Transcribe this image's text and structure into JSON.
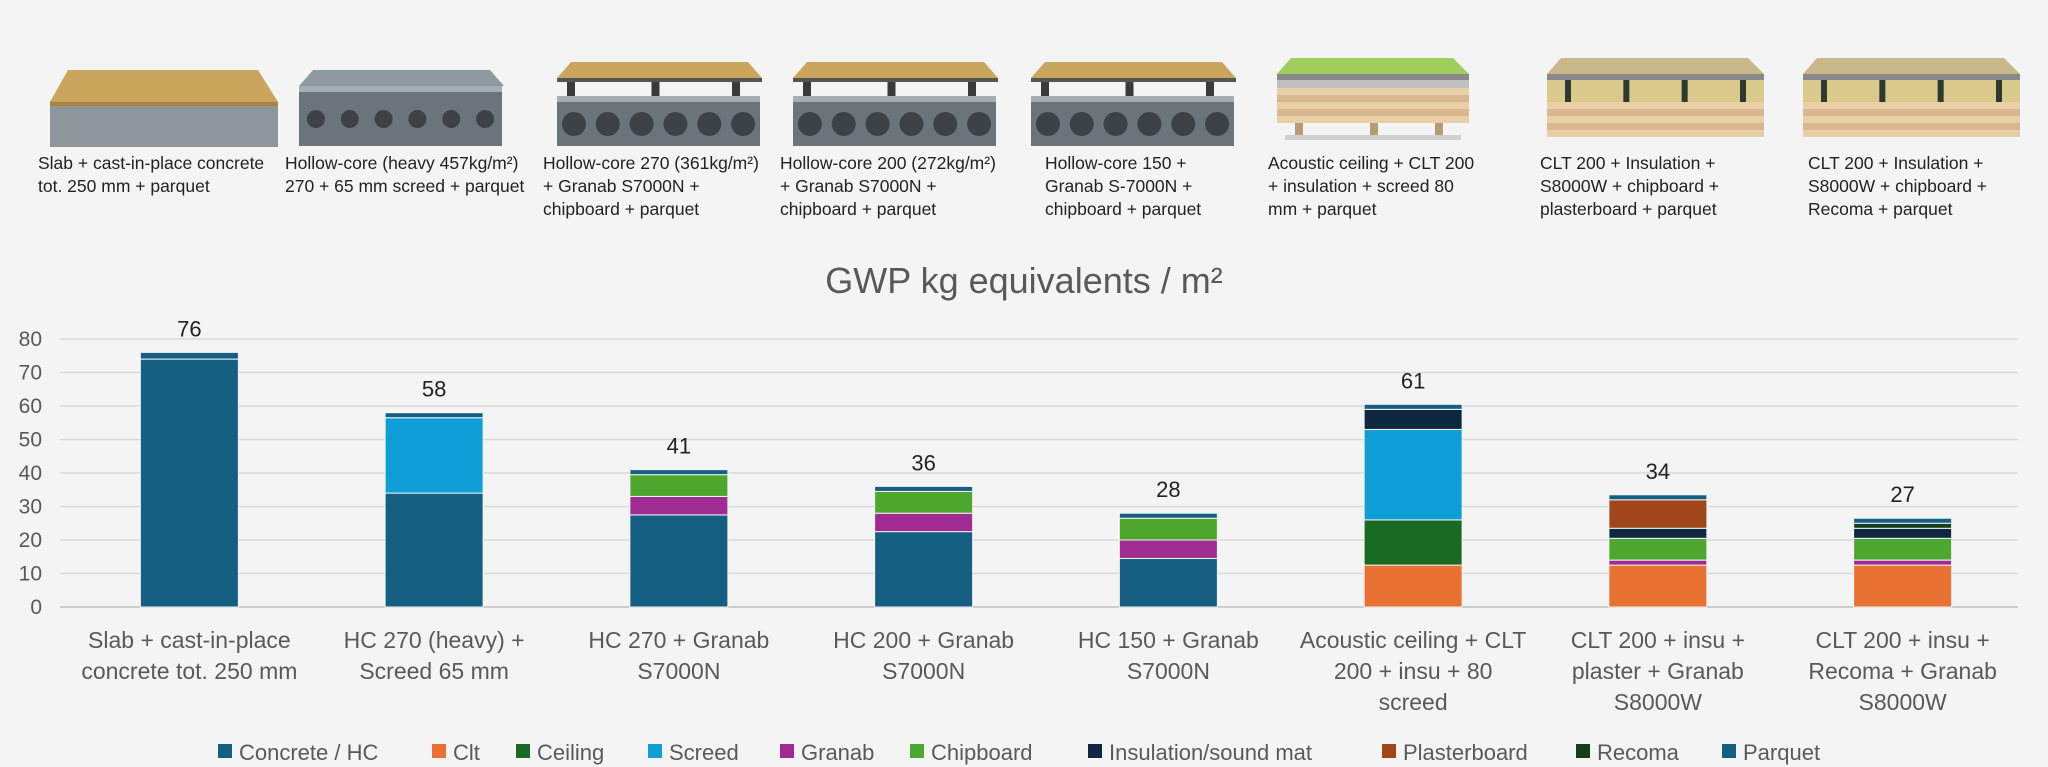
{
  "products": [
    {
      "caption": "Slab + cast-in-place concrete\ntot. 250 mm + parquet",
      "kind": "slab"
    },
    {
      "caption": "Hollow-core (heavy 457kg/m²)\n270 + 65 mm screed + parquet",
      "kind": "hc"
    },
    {
      "caption": "Hollow-core 270 (361kg/m²)\n+ Granab S7000N +\nchipboard + parquet",
      "kind": "hcg"
    },
    {
      "caption": "Hollow-core 200 (272kg/m²)\n+ Granab S7000N +\nchipboard + parquet",
      "kind": "hcg"
    },
    {
      "caption": "Hollow-core 150 +\nGranab S-7000N +\nchipboard +  parquet",
      "kind": "hcg"
    },
    {
      "caption": "Acoustic ceiling + CLT 200\n+ insulation + screed 80\nmm + parquet",
      "kind": "clt"
    },
    {
      "caption": "CLT 200 + Insulation +\nS8000W + chipboard +\nplasterboard + parquet",
      "kind": "clt2"
    },
    {
      "caption": "CLT 200 + Insulation +\nS8000W + chipboard +\nRecoma + parquet",
      "kind": "clt2"
    }
  ],
  "chart_data": {
    "type": "bar",
    "stacked": true,
    "title": "GWP kg equivalents / m²",
    "ylim": [
      0,
      80
    ],
    "yticks": [
      0,
      10,
      20,
      30,
      40,
      50,
      60,
      70,
      80
    ],
    "grid": true,
    "legend_position": "bottom",
    "categories": [
      "Slab + cast-in-place concrete tot. 250 mm",
      "HC 270 (heavy) + Screed 65 mm",
      "HC 270 + Granab S7000N",
      "HC 200 + Granab S7000N",
      "HC 150 + Granab S7000N",
      "Acoustic ceiling + CLT 200 + insu + 80 screed",
      "CLT 200 + insu + plaster + Granab S8000W",
      "CLT 200 + insu + Recoma + Granab S8000W"
    ],
    "totals": [
      76,
      58,
      41,
      36,
      28,
      61,
      34,
      27
    ],
    "series": [
      {
        "name": "Concrete / HC",
        "color": "#156082",
        "values": [
          74,
          34,
          27.5,
          22.5,
          14.5,
          0,
          0,
          0
        ]
      },
      {
        "name": "Clt",
        "color": "#e97132",
        "values": [
          0,
          0,
          0,
          0,
          0,
          12.5,
          12.5,
          12.5
        ]
      },
      {
        "name": "Ceiling",
        "color": "#196b24",
        "values": [
          0,
          0,
          0,
          0,
          0,
          13.5,
          0,
          0
        ]
      },
      {
        "name": "Screed",
        "color": "#0f9ed5",
        "values": [
          0,
          22.5,
          0,
          0,
          0,
          27,
          0,
          0
        ]
      },
      {
        "name": "Granab",
        "color": "#a02b93",
        "values": [
          0,
          0,
          5.5,
          5.5,
          5.5,
          0,
          1.5,
          1.5
        ]
      },
      {
        "name": "Chipboard",
        "color": "#4ea72e",
        "values": [
          0,
          0,
          6.5,
          6.5,
          6.5,
          0,
          6.5,
          6.5
        ]
      },
      {
        "name": "Insulation/sound mat",
        "color": "#0e2841",
        "values": [
          0,
          0,
          0,
          0,
          0,
          6,
          3,
          3
        ]
      },
      {
        "name": "Plasterboard",
        "color": "#a0461a",
        "values": [
          0,
          0,
          0,
          0,
          0,
          0,
          8.5,
          0
        ]
      },
      {
        "name": "Recoma",
        "color": "#153e1d",
        "values": [
          0,
          0,
          0,
          0,
          0,
          0,
          0,
          1.5
        ]
      },
      {
        "name": "Parquet",
        "color": "#156082",
        "values": [
          2,
          1.5,
          1.5,
          1.5,
          1.5,
          1.5,
          1.5,
          1.5
        ]
      }
    ],
    "category_labels": [
      [
        "Slab + cast-in-place",
        "concrete tot. 250 mm"
      ],
      [
        "HC 270 (heavy) +",
        "Screed 65 mm"
      ],
      [
        "HC 270 + Granab",
        "S7000N"
      ],
      [
        "HC 200 + Granab",
        "S7000N"
      ],
      [
        "HC 150 + Granab",
        "S7000N"
      ],
      [
        "Acoustic ceiling + CLT",
        "200 + insu + 80",
        "screed"
      ],
      [
        "CLT 200 + insu +",
        "plaster + Granab",
        "S8000W"
      ],
      [
        "CLT 200 + insu +",
        "Recoma + Granab",
        "S8000W"
      ]
    ]
  }
}
